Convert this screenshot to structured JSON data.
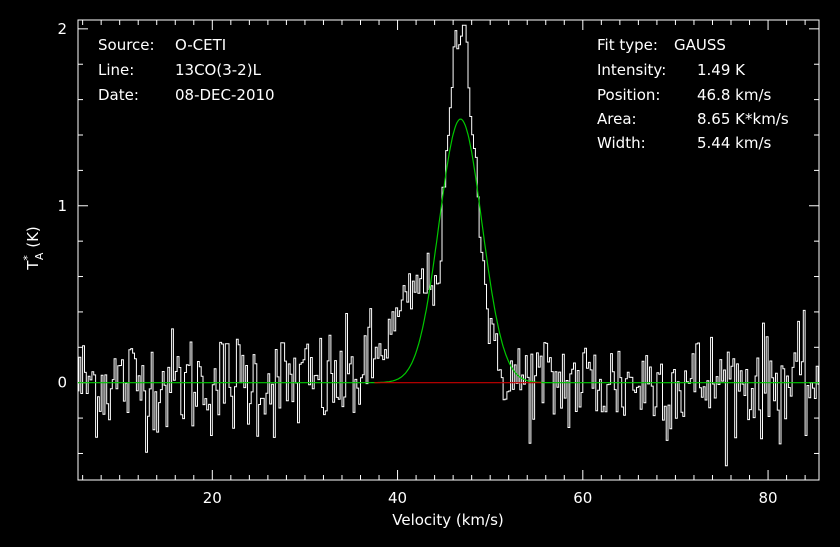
{
  "colors": {
    "background": "#000000",
    "spectrum": "#ffffff",
    "fit": "#00c800",
    "baseline": "#c80000",
    "axes": "#ffffff"
  },
  "header_left": {
    "source_label": "Source:",
    "source_value": "O-CETI",
    "line_label": "Line:",
    "line_value": "13CO(3-2)L",
    "date_label": "Date:",
    "date_value": "08-DEC-2010"
  },
  "header_right": {
    "fit_type_label": "Fit type:",
    "fit_type_value": "GAUSS",
    "intensity_label": "Intensity:",
    "intensity_value": "1.49 K",
    "position_label": "Position:",
    "position_value": "46.8 km/s",
    "area_label": "Area:",
    "area_value": "8.65 K*km/s",
    "width_label": "Width:",
    "width_value": "5.44 km/s"
  },
  "chart_data": {
    "type": "line",
    "xlabel": "Velocity (km/s)",
    "ylabel_main": "T",
    "ylabel_sup": "*",
    "ylabel_sub": "A",
    "ylabel_unit": " (K)",
    "xlim": [
      5.5,
      85.5
    ],
    "ylim": [
      -0.55,
      2.05
    ],
    "x_ticks": [
      20,
      40,
      60,
      80
    ],
    "x_tick_labels": [
      "20",
      "40",
      "60",
      "80"
    ],
    "y_ticks": [
      0,
      1,
      2
    ],
    "y_tick_labels": [
      "0",
      "1",
      "2"
    ],
    "grid": false,
    "gaussian_fit": {
      "amplitude": 1.49,
      "center": 46.8,
      "fwhm": 5.44
    },
    "baseline_fit_range": [
      37.5,
      55.5
    ],
    "spectrum": {
      "x_start": 5.5,
      "x_step": 0.2,
      "noise_sigma": 0.15,
      "peak_value": 2.02,
      "peak_x": 46.9,
      "wing_shoulder": {
        "x": 43.0,
        "value": 0.55
      }
    }
  }
}
